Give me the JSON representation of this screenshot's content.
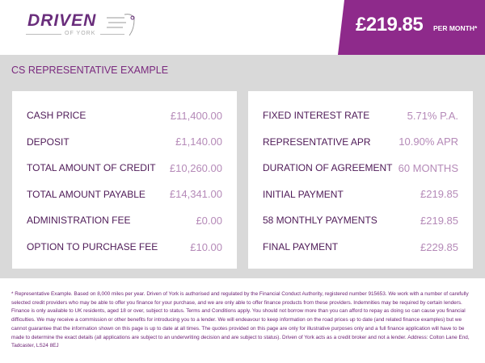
{
  "header": {
    "logo_text": "DRIVEN",
    "logo_sub": "OF YORK",
    "price": "£219.85",
    "price_suffix": "PER MONTH*"
  },
  "section_title": "CS REPRESENTATIVE EXAMPLE",
  "left": [
    {
      "label": "CASH PRICE",
      "value": "£11,400.00"
    },
    {
      "label": "DEPOSIT",
      "value": "£1,140.00"
    },
    {
      "label": "TOTAL AMOUNT OF CREDIT",
      "value": "£10,260.00"
    },
    {
      "label": "TOTAL AMOUNT PAYABLE",
      "value": "£14,341.00"
    },
    {
      "label": "ADMINISTRATION FEE",
      "value": "£0.00"
    },
    {
      "label": "OPTION TO PURCHASE FEE",
      "value": "£10.00"
    }
  ],
  "right": [
    {
      "label": "FIXED INTEREST RATE",
      "value": "5.71% P.A."
    },
    {
      "label": "REPRESENTATIVE APR",
      "value": "10.90% APR"
    },
    {
      "label": "DURATION OF AGREEMENT",
      "value": "60 MONTHS"
    },
    {
      "label": "INITIAL PAYMENT",
      "value": "£219.85"
    },
    {
      "label": "58 MONTHLY PAYMENTS",
      "value": "£219.85"
    },
    {
      "label": "FINAL PAYMENT",
      "value": "£229.85"
    }
  ],
  "footnote": "* Representative Example. Based on 8,000 miles per year. Driven of York is authorised and regulated by the Financial Conduct Authority, registered number 915653. We work with a number of carefully selected credit providers who may be able to offer you finance for your purchase, and we are only able to offer finance products from these providers. Indemnities may be required by certain lenders. Finance is only available to UK residents, aged 18 or over, subject to status. Terms and Conditions apply. You should not borrow more than you can afford to repay as doing so can cause you financial difficulties. We may receive a commission or other benefits for introducing you to a lender. We will endeavour to keep information on the road prices up to date (and related finance examples) but we cannot guarantee that the information shown on this page is up to date at all times. The quotes provided on this page are only for illustrative purposes only and a full finance application will have to be made to determine the exact details (all applications are subject to an underwriting decision and are subject to status). Driven of York acts as a credit broker and not a lender. Address: Colton Lane End, Tadcaster, LS24 8EJ",
  "colors": {
    "brand": "#8e2a8b",
    "label": "#4e1a57",
    "value": "#b58ab8"
  }
}
